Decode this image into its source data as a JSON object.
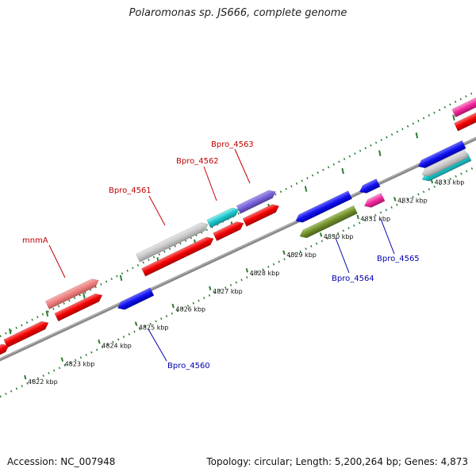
{
  "title": "Polaromonas sp. JS666, complete genome",
  "footer": {
    "accession": "Accession: NC_007948",
    "summary": "Topology: circular; Length: 5,200,264 bp; Genes: 4,873"
  },
  "colors": {
    "forward_label": "#c00000",
    "reverse_label": "#0000b0",
    "backbone": "#777777",
    "tick": "#2e7d32"
  },
  "scale_labels": [
    "4822 kbp",
    "4823 kbp",
    "4824 kbp",
    "4825 kbp",
    "4826 kbp",
    "4827 kbp",
    "4828 kbp",
    "4829 kbp",
    "4830 kbp",
    "4831 kbp",
    "4832 kbp",
    "4833 kbp"
  ],
  "gene_labels": {
    "mnmA": "mnmA",
    "bpro_4561": "Bpro_4561",
    "bpro_4562": "Bpro_4562",
    "bpro_4563": "Bpro_4563",
    "bpro_4560": "Bpro_4560",
    "bpro_4564": "Bpro_4564",
    "bpro_4565": "Bpro_4565"
  }
}
